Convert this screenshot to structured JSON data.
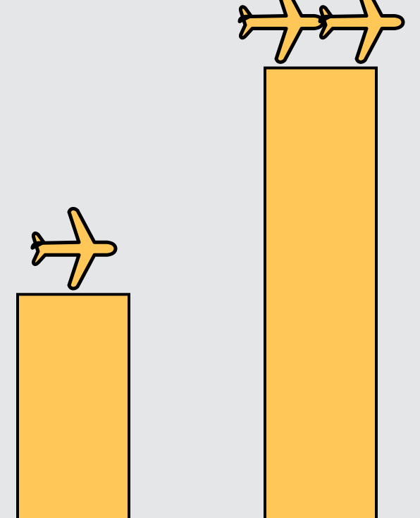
{
  "chart_data": {
    "type": "bar",
    "categories": [
      "",
      ""
    ],
    "values": [
      1,
      2
    ],
    "ylim": [
      0,
      2.3
    ],
    "grid": false,
    "marker_icon": "airplane-icon",
    "colors": {
      "background": "#e5e6e8",
      "bar_fill": "#ffc658",
      "outline": "#000000"
    }
  }
}
